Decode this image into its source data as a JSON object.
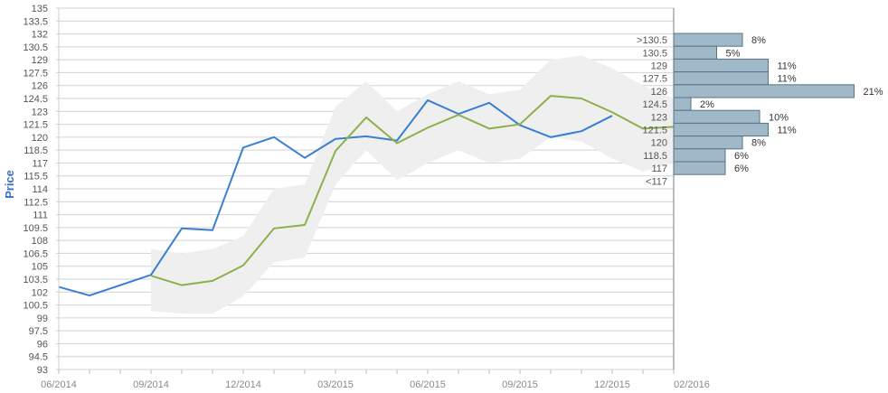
{
  "chart_data": {
    "type": "line",
    "ylabel": "Price",
    "ylim": [
      93,
      135
    ],
    "y_ticks": [
      "93",
      "94.5",
      "96",
      "97.5",
      "99",
      "100.5",
      "102",
      "103.5",
      "105",
      "106.5",
      "108",
      "109.5",
      "111",
      "112.5",
      "114",
      "115.5",
      "117",
      "118.5",
      "120",
      "121.5",
      "123",
      "124.5",
      "126",
      "127.5",
      "129",
      "130.5",
      "132",
      "133.5",
      "135"
    ],
    "x_ticks": [
      "06/2014",
      "09/2014",
      "12/2014",
      "03/2015",
      "06/2015",
      "09/2015",
      "12/2015",
      "02/2016"
    ],
    "x_minor_ticks": [
      "2014-06",
      "2014-07",
      "2014-08",
      "2014-09",
      "2014-10",
      "2014-11",
      "2014-12",
      "2015-01",
      "2015-02",
      "2015-03",
      "2015-04",
      "2015-05",
      "2015-06",
      "2015-07",
      "2015-08",
      "2015-09",
      "2015-10",
      "2015-11",
      "2015-12",
      "2016-01",
      "2016-02"
    ],
    "series": [
      {
        "color": "#3a7fd0",
        "x": [
          "2014-06",
          "2014-07",
          "2014-09",
          "2014-10",
          "2014-11",
          "2014-12",
          "2015-01",
          "2015-02",
          "2015-03",
          "2015-04",
          "2015-05",
          "2015-06",
          "2015-07",
          "2015-08",
          "2015-09",
          "2015-10",
          "2015-11",
          "2015-12"
        ],
        "values": [
          102.6,
          101.6,
          104.0,
          109.4,
          109.2,
          118.8,
          120.0,
          117.6,
          119.8,
          120.1,
          119.6,
          124.3,
          122.7,
          124.0,
          121.4,
          120.0,
          120.7,
          122.5
        ]
      },
      {
        "color": "#8cb04c",
        "x": [
          "2014-09",
          "2014-10",
          "2014-11",
          "2014-12",
          "2015-01",
          "2015-02",
          "2015-03",
          "2015-04",
          "2015-05",
          "2015-06",
          "2015-07",
          "2015-08",
          "2015-09",
          "2015-10",
          "2015-11",
          "2015-12",
          "2016-01",
          "2016-02"
        ],
        "values": [
          103.9,
          102.8,
          103.3,
          105.1,
          109.4,
          109.8,
          118.4,
          122.3,
          119.3,
          121.1,
          122.6,
          121.0,
          121.5,
          124.8,
          124.5,
          122.9,
          121.0,
          121.2
        ]
      }
    ],
    "band": {
      "color": "#efefef",
      "x": [
        "2014-09",
        "2014-10",
        "2014-11",
        "2014-12",
        "2015-01",
        "2015-02",
        "2015-03",
        "2015-04",
        "2015-05",
        "2015-06",
        "2015-07",
        "2015-08",
        "2015-09",
        "2015-10",
        "2015-11",
        "2015-12",
        "2016-01",
        "2016-02"
      ],
      "upper": [
        107.0,
        106.5,
        107.0,
        108.5,
        114.0,
        114.5,
        123.5,
        126.5,
        123.0,
        125.0,
        126.5,
        125.0,
        125.5,
        129.0,
        129.5,
        128.0,
        126.0,
        124.5
      ],
      "lower": [
        99.8,
        99.5,
        99.5,
        101.5,
        105.5,
        106.0,
        114.5,
        118.5,
        115.0,
        117.0,
        118.5,
        117.0,
        117.5,
        120.0,
        119.5,
        117.5,
        116.0,
        117.0
      ]
    },
    "distribution": {
      "color": "#9fb9c8",
      "buckets": [
        {
          "label": ">130.5",
          "percent": 8,
          "text": "8%"
        },
        {
          "label": "130.5",
          "percent": 5,
          "text": "5%"
        },
        {
          "label": "129",
          "percent": 11,
          "text": "11%"
        },
        {
          "label": "127.5",
          "percent": 11,
          "text": "11%"
        },
        {
          "label": "126",
          "percent": 21,
          "text": "21%"
        },
        {
          "label": "124.5",
          "percent": 2,
          "text": "2%"
        },
        {
          "label": "123",
          "percent": 10,
          "text": "10%"
        },
        {
          "label": "121.5",
          "percent": 11,
          "text": "11%"
        },
        {
          "label": "120",
          "percent": 8,
          "text": "8%"
        },
        {
          "label": "118.5",
          "percent": 6,
          "text": "6%"
        },
        {
          "label": "117",
          "percent": 6,
          "text": "6%"
        },
        {
          "label": "<117",
          "percent": 0,
          "text": ""
        }
      ]
    },
    "grid": true
  }
}
